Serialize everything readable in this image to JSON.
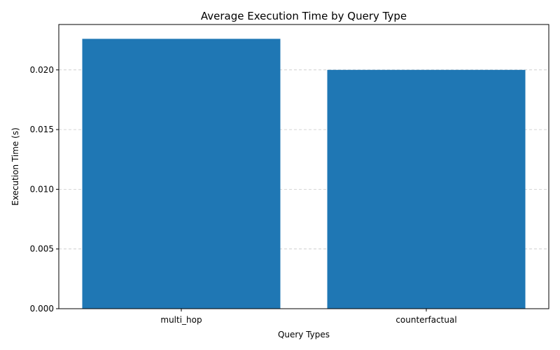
{
  "chart_data": {
    "type": "bar",
    "title": "Average Execution Time by Query Type",
    "xlabel": "Query Types",
    "ylabel": "Execution Time (s)",
    "categories": [
      "multi_hop",
      "counterfactual"
    ],
    "values": [
      0.0226,
      0.02
    ],
    "ylim": [
      0,
      0.0238
    ],
    "yticks": [
      0.0,
      0.005,
      0.01,
      0.015,
      0.02
    ],
    "ytick_labels": [
      "0.000",
      "0.005",
      "0.010",
      "0.015",
      "0.020"
    ],
    "grid": "y-dashed",
    "bar_color": "#1f77b4"
  }
}
